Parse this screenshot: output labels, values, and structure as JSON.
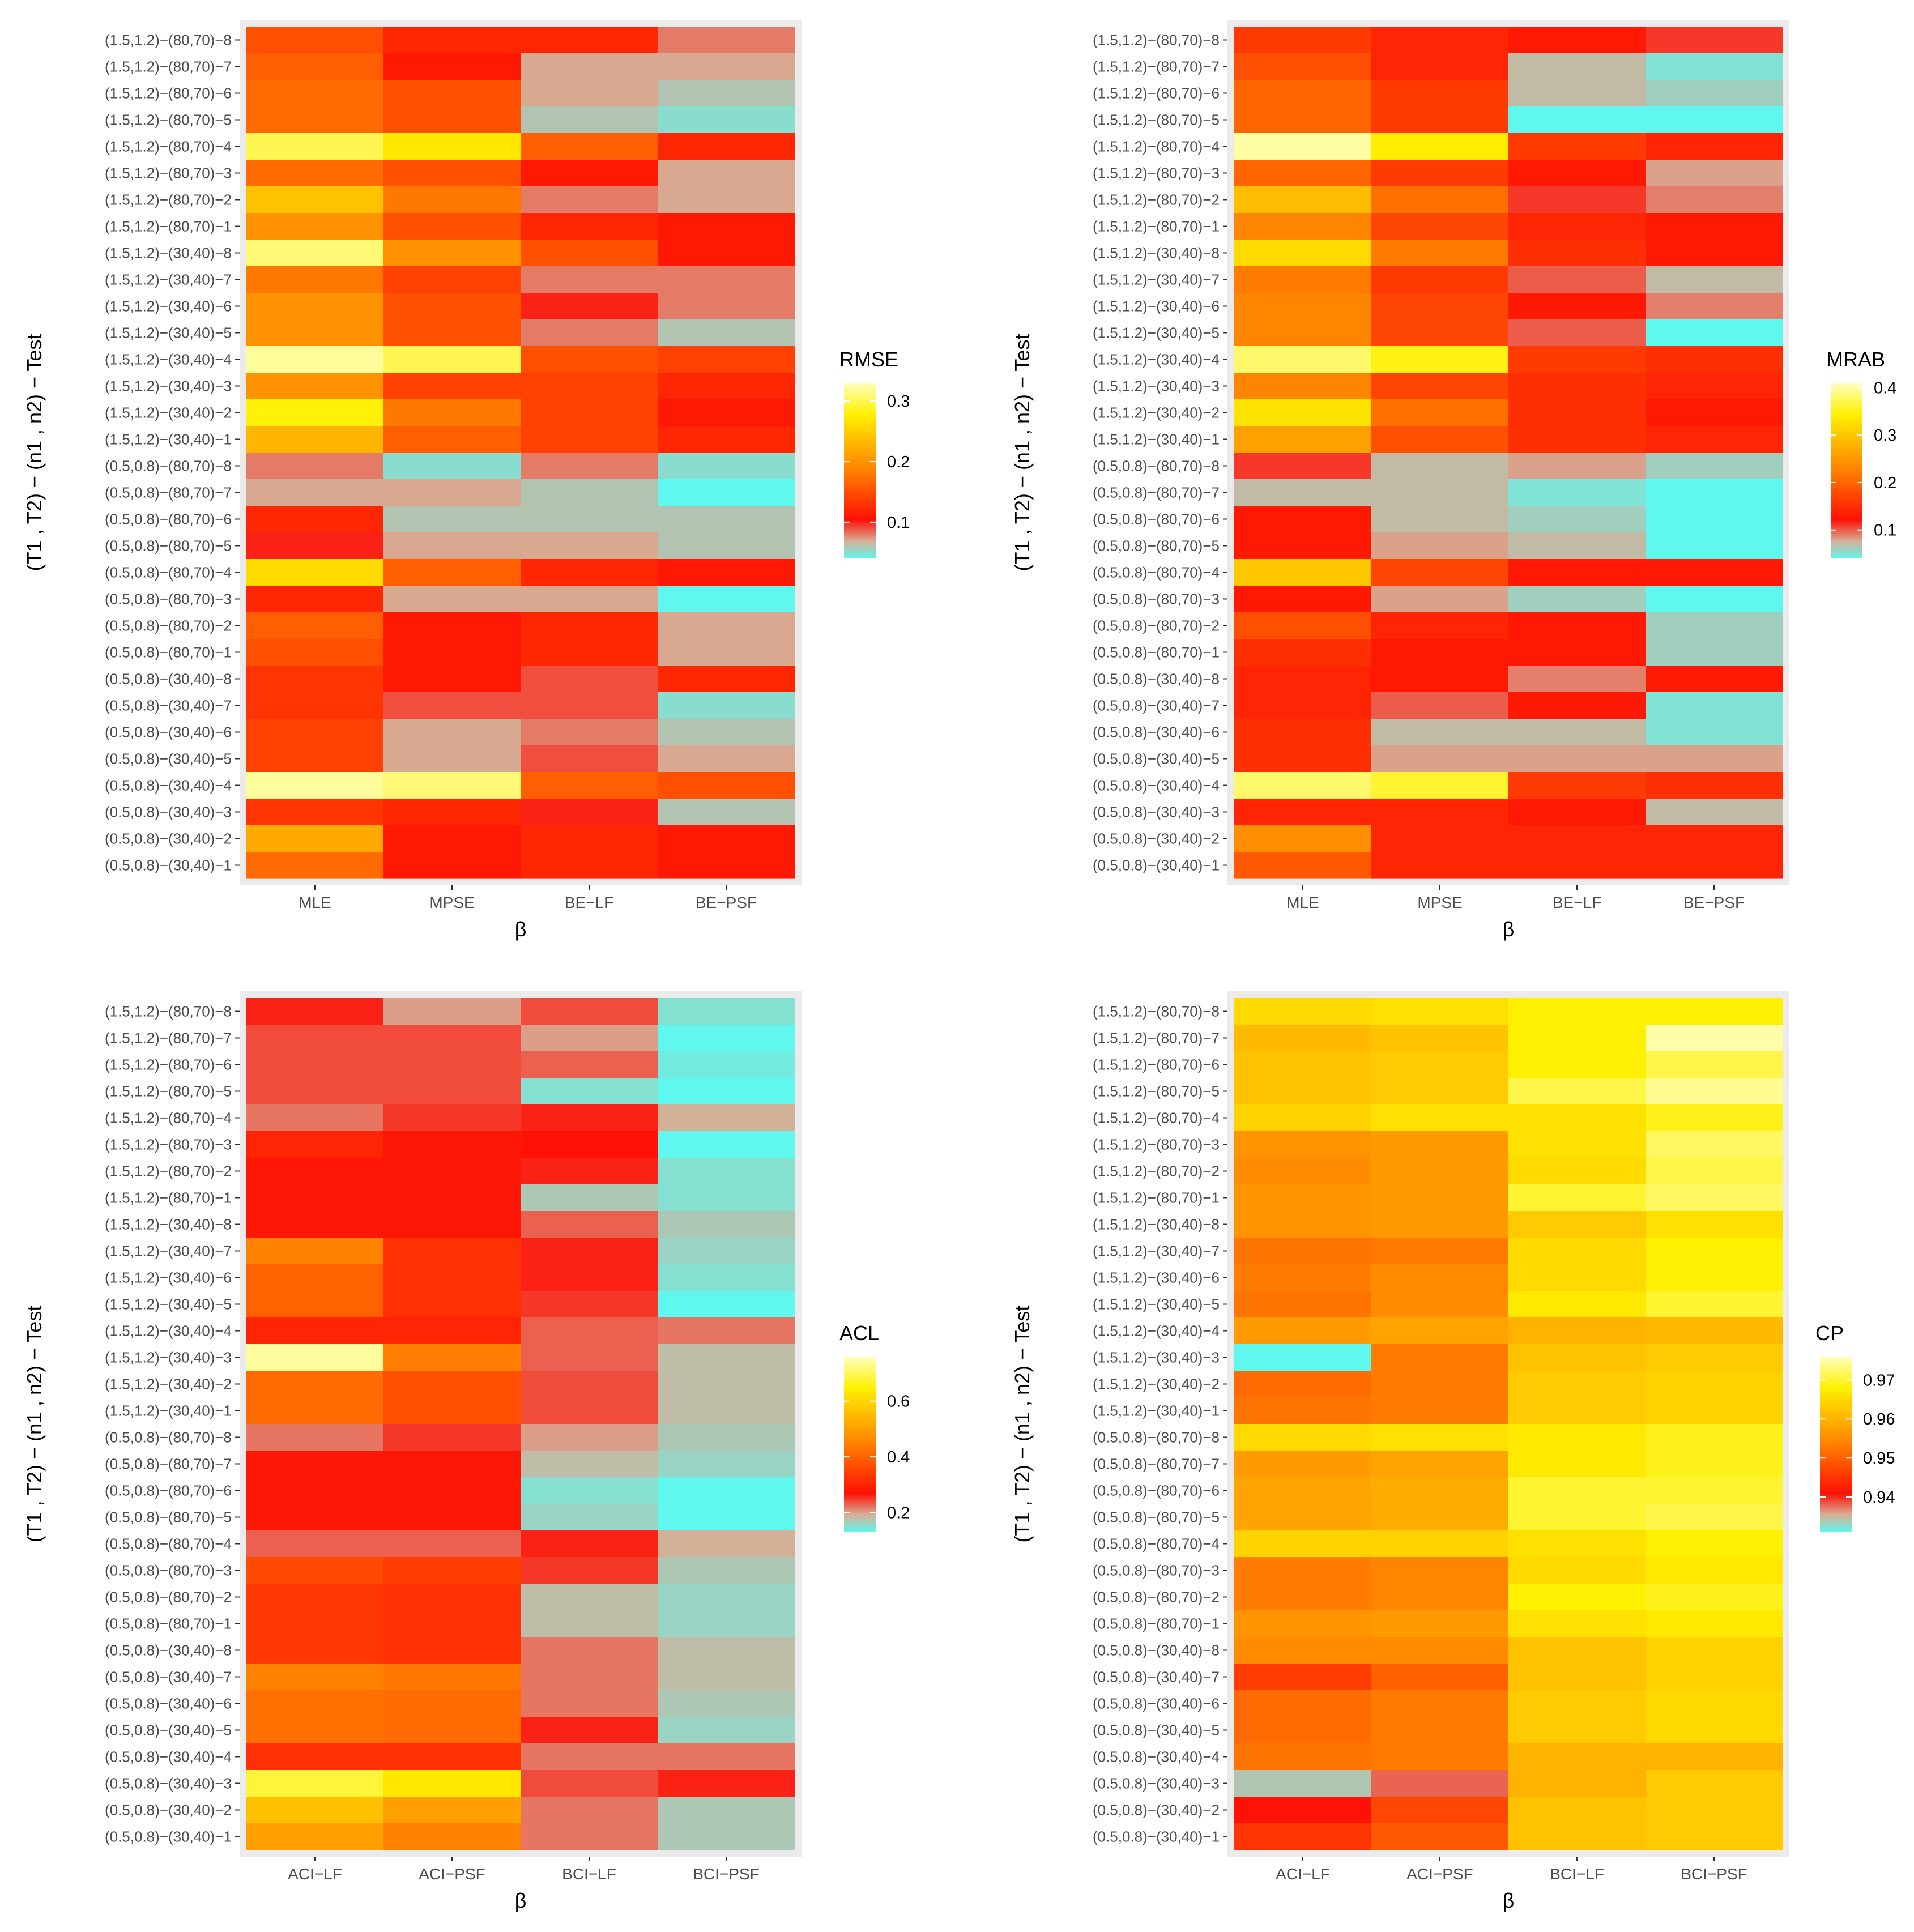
{
  "chart_data": [
    {
      "type": "heatmap",
      "panel": "top-left",
      "xlabel": "β",
      "ylabel": "(T1 , T2) − (n1 , n2) − Test",
      "x_categories": [
        "MLE",
        "MPSE",
        "BE−LF",
        "BE−PSF"
      ],
      "y_categories": [
        "(1.5,1.2)−(80,70)−8",
        "(1.5,1.2)−(80,70)−7",
        "(1.5,1.2)−(80,70)−6",
        "(1.5,1.2)−(80,70)−5",
        "(1.5,1.2)−(80,70)−4",
        "(1.5,1.2)−(80,70)−3",
        "(1.5,1.2)−(80,70)−2",
        "(1.5,1.2)−(80,70)−1",
        "(1.5,1.2)−(30,40)−8",
        "(1.5,1.2)−(30,40)−7",
        "(1.5,1.2)−(30,40)−6",
        "(1.5,1.2)−(30,40)−5",
        "(1.5,1.2)−(30,40)−4",
        "(1.5,1.2)−(30,40)−3",
        "(1.5,1.2)−(30,40)−2",
        "(1.5,1.2)−(30,40)−1",
        "(0.5,0.8)−(80,70)−8",
        "(0.5,0.8)−(80,70)−7",
        "(0.5,0.8)−(80,70)−6",
        "(0.5,0.8)−(80,70)−5",
        "(0.5,0.8)−(80,70)−4",
        "(0.5,0.8)−(80,70)−3",
        "(0.5,0.8)−(80,70)−2",
        "(0.5,0.8)−(80,70)−1",
        "(0.5,0.8)−(30,40)−8",
        "(0.5,0.8)−(30,40)−7",
        "(0.5,0.8)−(30,40)−6",
        "(0.5,0.8)−(30,40)−5",
        "(0.5,0.8)−(30,40)−4",
        "(0.5,0.8)−(30,40)−3",
        "(0.5,0.8)−(30,40)−2",
        "(0.5,0.8)−(30,40)−1"
      ],
      "legend": {
        "title": "RMSE",
        "ticks": [
          0.1,
          0.2,
          0.3
        ],
        "min": 0.04,
        "max": 0.33
      },
      "values": [
        [
          0.15,
          0.12,
          0.12,
          0.08
        ],
        [
          0.16,
          0.11,
          0.07,
          0.07
        ],
        [
          0.17,
          0.15,
          0.07,
          0.06
        ],
        [
          0.17,
          0.15,
          0.06,
          0.05
        ],
        [
          0.3,
          0.27,
          0.16,
          0.12
        ],
        [
          0.17,
          0.15,
          0.11,
          0.07
        ],
        [
          0.24,
          0.18,
          0.08,
          0.07
        ],
        [
          0.2,
          0.15,
          0.12,
          0.11
        ],
        [
          0.31,
          0.2,
          0.15,
          0.11
        ],
        [
          0.18,
          0.14,
          0.08,
          0.08
        ],
        [
          0.2,
          0.15,
          0.1,
          0.08
        ],
        [
          0.2,
          0.15,
          0.08,
          0.06
        ],
        [
          0.32,
          0.3,
          0.15,
          0.14
        ],
        [
          0.2,
          0.14,
          0.14,
          0.12
        ],
        [
          0.28,
          0.18,
          0.14,
          0.11
        ],
        [
          0.23,
          0.16,
          0.14,
          0.12
        ],
        [
          0.08,
          0.05,
          0.08,
          0.05
        ],
        [
          0.07,
          0.07,
          0.06,
          0.03
        ],
        [
          0.12,
          0.06,
          0.06,
          0.06
        ],
        [
          0.1,
          0.07,
          0.07,
          0.06
        ],
        [
          0.26,
          0.16,
          0.12,
          0.11
        ],
        [
          0.12,
          0.07,
          0.07,
          0.04
        ],
        [
          0.16,
          0.11,
          0.12,
          0.07
        ],
        [
          0.15,
          0.11,
          0.12,
          0.07
        ],
        [
          0.13,
          0.11,
          0.09,
          0.12
        ],
        [
          0.13,
          0.09,
          0.09,
          0.05
        ],
        [
          0.14,
          0.07,
          0.08,
          0.06
        ],
        [
          0.14,
          0.07,
          0.09,
          0.07
        ],
        [
          0.32,
          0.31,
          0.16,
          0.15
        ],
        [
          0.13,
          0.12,
          0.1,
          0.06
        ],
        [
          0.22,
          0.11,
          0.12,
          0.11
        ],
        [
          0.17,
          0.11,
          0.12,
          0.11
        ]
      ]
    },
    {
      "type": "heatmap",
      "panel": "top-right",
      "xlabel": "β",
      "ylabel": "(T1 , T2) − (n1 , n2) − Test",
      "x_categories": [
        "MLE",
        "MPSE",
        "BE−LF",
        "BE−PSF"
      ],
      "y_categories": [
        "(1.5,1.2)−(80,70)−8",
        "(1.5,1.2)−(80,70)−7",
        "(1.5,1.2)−(80,70)−6",
        "(1.5,1.2)−(80,70)−5",
        "(1.5,1.2)−(80,70)−4",
        "(1.5,1.2)−(80,70)−3",
        "(1.5,1.2)−(80,70)−2",
        "(1.5,1.2)−(80,70)−1",
        "(1.5,1.2)−(30,40)−8",
        "(1.5,1.2)−(30,40)−7",
        "(1.5,1.2)−(30,40)−6",
        "(1.5,1.2)−(30,40)−5",
        "(1.5,1.2)−(30,40)−4",
        "(1.5,1.2)−(30,40)−3",
        "(1.5,1.2)−(30,40)−2",
        "(1.5,1.2)−(30,40)−1",
        "(0.5,0.8)−(80,70)−8",
        "(0.5,0.8)−(80,70)−7",
        "(0.5,0.8)−(80,70)−6",
        "(0.5,0.8)−(80,70)−5",
        "(0.5,0.8)−(80,70)−4",
        "(0.5,0.8)−(80,70)−3",
        "(0.5,0.8)−(80,70)−2",
        "(0.5,0.8)−(80,70)−1",
        "(0.5,0.8)−(30,40)−8",
        "(0.5,0.8)−(30,40)−7",
        "(0.5,0.8)−(30,40)−6",
        "(0.5,0.8)−(30,40)−5",
        "(0.5,0.8)−(30,40)−4",
        "(0.5,0.8)−(30,40)−3",
        "(0.5,0.8)−(30,40)−2",
        "(0.5,0.8)−(30,40)−1"
      ],
      "legend": {
        "title": "MRAB",
        "ticks": [
          0.1,
          0.2,
          0.3,
          0.4
        ],
        "min": 0.04,
        "max": 0.41
      },
      "values": [
        [
          0.16,
          0.14,
          0.13,
          0.11
        ],
        [
          0.18,
          0.14,
          0.07,
          0.05
        ],
        [
          0.2,
          0.16,
          0.07,
          0.06
        ],
        [
          0.2,
          0.16,
          0.04,
          0.04
        ],
        [
          0.4,
          0.34,
          0.16,
          0.14
        ],
        [
          0.2,
          0.16,
          0.13,
          0.08
        ],
        [
          0.29,
          0.21,
          0.11,
          0.09
        ],
        [
          0.23,
          0.17,
          0.14,
          0.13
        ],
        [
          0.32,
          0.22,
          0.15,
          0.13
        ],
        [
          0.22,
          0.16,
          0.1,
          0.07
        ],
        [
          0.23,
          0.17,
          0.13,
          0.09
        ],
        [
          0.23,
          0.17,
          0.1,
          0.04
        ],
        [
          0.38,
          0.35,
          0.16,
          0.15
        ],
        [
          0.23,
          0.17,
          0.15,
          0.14
        ],
        [
          0.33,
          0.21,
          0.15,
          0.13
        ],
        [
          0.26,
          0.18,
          0.15,
          0.14
        ],
        [
          0.11,
          0.07,
          0.08,
          0.06
        ],
        [
          0.07,
          0.07,
          0.05,
          0.03
        ],
        [
          0.13,
          0.07,
          0.06,
          0.04
        ],
        [
          0.13,
          0.08,
          0.07,
          0.04
        ],
        [
          0.3,
          0.17,
          0.13,
          0.13
        ],
        [
          0.13,
          0.08,
          0.06,
          0.04
        ],
        [
          0.18,
          0.14,
          0.13,
          0.06
        ],
        [
          0.15,
          0.13,
          0.13,
          0.06
        ],
        [
          0.14,
          0.13,
          0.09,
          0.13
        ],
        [
          0.14,
          0.1,
          0.13,
          0.05
        ],
        [
          0.15,
          0.07,
          0.07,
          0.05
        ],
        [
          0.15,
          0.08,
          0.08,
          0.08
        ],
        [
          0.38,
          0.36,
          0.16,
          0.15
        ],
        [
          0.14,
          0.14,
          0.13,
          0.07
        ],
        [
          0.24,
          0.14,
          0.14,
          0.14
        ],
        [
          0.19,
          0.14,
          0.14,
          0.14
        ]
      ]
    },
    {
      "type": "heatmap",
      "panel": "bottom-left",
      "xlabel": "β",
      "ylabel": "(T1 , T2) − (n1 , n2) − Test",
      "x_categories": [
        "ACI−LF",
        "ACI−PSF",
        "BCI−LF",
        "BCI−PSF"
      ],
      "y_categories": [
        "(1.5,1.2)−(80,70)−8",
        "(1.5,1.2)−(80,70)−7",
        "(1.5,1.2)−(80,70)−6",
        "(1.5,1.2)−(80,70)−5",
        "(1.5,1.2)−(80,70)−4",
        "(1.5,1.2)−(80,70)−3",
        "(1.5,1.2)−(80,70)−2",
        "(1.5,1.2)−(80,70)−1",
        "(1.5,1.2)−(30,40)−8",
        "(1.5,1.2)−(30,40)−7",
        "(1.5,1.2)−(30,40)−6",
        "(1.5,1.2)−(30,40)−5",
        "(1.5,1.2)−(30,40)−4",
        "(1.5,1.2)−(30,40)−3",
        "(1.5,1.2)−(30,40)−2",
        "(1.5,1.2)−(30,40)−1",
        "(0.5,0.8)−(80,70)−8",
        "(0.5,0.8)−(80,70)−7",
        "(0.5,0.8)−(80,70)−6",
        "(0.5,0.8)−(80,70)−5",
        "(0.5,0.8)−(80,70)−4",
        "(0.5,0.8)−(80,70)−3",
        "(0.5,0.8)−(80,70)−2",
        "(0.5,0.8)−(80,70)−1",
        "(0.5,0.8)−(30,40)−8",
        "(0.5,0.8)−(30,40)−7",
        "(0.5,0.8)−(30,40)−6",
        "(0.5,0.8)−(30,40)−5",
        "(0.5,0.8)−(30,40)−4",
        "(0.5,0.8)−(30,40)−3",
        "(0.5,0.8)−(30,40)−2",
        "(0.5,0.8)−(30,40)−1"
      ],
      "legend": {
        "title": "ACL",
        "ticks": [
          0.2,
          0.4,
          0.6
        ],
        "min": 0.13,
        "max": 0.76
      },
      "values": [
        [
          0.26,
          0.2,
          0.24,
          0.15
        ],
        [
          0.24,
          0.24,
          0.2,
          0.13
        ],
        [
          0.24,
          0.24,
          0.23,
          0.14
        ],
        [
          0.24,
          0.24,
          0.15,
          0.13
        ],
        [
          0.22,
          0.25,
          0.26,
          0.19
        ],
        [
          0.3,
          0.28,
          0.27,
          0.13
        ],
        [
          0.28,
          0.28,
          0.26,
          0.15
        ],
        [
          0.28,
          0.28,
          0.17,
          0.15
        ],
        [
          0.28,
          0.28,
          0.23,
          0.17
        ],
        [
          0.45,
          0.32,
          0.26,
          0.16
        ],
        [
          0.4,
          0.32,
          0.26,
          0.15
        ],
        [
          0.4,
          0.32,
          0.25,
          0.13
        ],
        [
          0.3,
          0.3,
          0.23,
          0.22
        ],
        [
          0.74,
          0.44,
          0.23,
          0.18
        ],
        [
          0.41,
          0.37,
          0.24,
          0.18
        ],
        [
          0.41,
          0.37,
          0.24,
          0.18
        ],
        [
          0.22,
          0.25,
          0.2,
          0.17
        ],
        [
          0.28,
          0.28,
          0.18,
          0.16
        ],
        [
          0.28,
          0.28,
          0.15,
          0.13
        ],
        [
          0.28,
          0.28,
          0.16,
          0.13
        ],
        [
          0.23,
          0.23,
          0.26,
          0.19
        ],
        [
          0.36,
          0.34,
          0.25,
          0.17
        ],
        [
          0.33,
          0.32,
          0.18,
          0.16
        ],
        [
          0.33,
          0.32,
          0.18,
          0.16
        ],
        [
          0.33,
          0.32,
          0.22,
          0.18
        ],
        [
          0.45,
          0.43,
          0.22,
          0.18
        ],
        [
          0.42,
          0.41,
          0.22,
          0.17
        ],
        [
          0.42,
          0.41,
          0.26,
          0.16
        ],
        [
          0.32,
          0.32,
          0.22,
          0.22
        ],
        [
          0.68,
          0.63,
          0.24,
          0.26
        ],
        [
          0.56,
          0.5,
          0.22,
          0.17
        ],
        [
          0.5,
          0.45,
          0.22,
          0.17
        ]
      ]
    },
    {
      "type": "heatmap",
      "panel": "bottom-right",
      "xlabel": "β",
      "ylabel": "(T1 , T2) − (n1 , n2) − Test",
      "x_categories": [
        "ACI−LF",
        "ACI−PSF",
        "BCI−LF",
        "BCI−PSF"
      ],
      "y_categories": [
        "(1.5,1.2)−(80,70)−8",
        "(1.5,1.2)−(80,70)−7",
        "(1.5,1.2)−(80,70)−6",
        "(1.5,1.2)−(80,70)−5",
        "(1.5,1.2)−(80,70)−4",
        "(1.5,1.2)−(80,70)−3",
        "(1.5,1.2)−(80,70)−2",
        "(1.5,1.2)−(80,70)−1",
        "(1.5,1.2)−(30,40)−8",
        "(1.5,1.2)−(30,40)−7",
        "(1.5,1.2)−(30,40)−6",
        "(1.5,1.2)−(30,40)−5",
        "(1.5,1.2)−(30,40)−4",
        "(1.5,1.2)−(30,40)−3",
        "(1.5,1.2)−(30,40)−2",
        "(1.5,1.2)−(30,40)−1",
        "(0.5,0.8)−(80,70)−8",
        "(0.5,0.8)−(80,70)−7",
        "(0.5,0.8)−(80,70)−6",
        "(0.5,0.8)−(80,70)−5",
        "(0.5,0.8)−(80,70)−4",
        "(0.5,0.8)−(80,70)−3",
        "(0.5,0.8)−(80,70)−2",
        "(0.5,0.8)−(80,70)−1",
        "(0.5,0.8)−(30,40)−8",
        "(0.5,0.8)−(30,40)−7",
        "(0.5,0.8)−(30,40)−6",
        "(0.5,0.8)−(30,40)−5",
        "(0.5,0.8)−(30,40)−4",
        "(0.5,0.8)−(30,40)−3",
        "(0.5,0.8)−(30,40)−2",
        "(0.5,0.8)−(30,40)−1"
      ],
      "legend": {
        "title": "CP",
        "ticks": [
          0.94,
          0.95,
          0.96,
          0.97
        ],
        "min": 0.931,
        "max": 0.976
      },
      "values": [
        [
          0.965,
          0.966,
          0.968,
          0.968
        ],
        [
          0.961,
          0.962,
          0.968,
          0.975
        ],
        [
          0.962,
          0.963,
          0.968,
          0.971
        ],
        [
          0.962,
          0.963,
          0.971,
          0.974
        ],
        [
          0.964,
          0.966,
          0.966,
          0.969
        ],
        [
          0.956,
          0.957,
          0.966,
          0.972
        ],
        [
          0.955,
          0.957,
          0.965,
          0.971
        ],
        [
          0.956,
          0.957,
          0.97,
          0.972
        ],
        [
          0.956,
          0.957,
          0.963,
          0.966
        ],
        [
          0.952,
          0.953,
          0.965,
          0.968
        ],
        [
          0.953,
          0.955,
          0.965,
          0.968
        ],
        [
          0.952,
          0.955,
          0.967,
          0.97
        ],
        [
          0.957,
          0.958,
          0.96,
          0.961
        ],
        [
          0.931,
          0.953,
          0.962,
          0.963
        ],
        [
          0.951,
          0.953,
          0.963,
          0.964
        ],
        [
          0.952,
          0.953,
          0.963,
          0.964
        ],
        [
          0.965,
          0.966,
          0.967,
          0.969
        ],
        [
          0.957,
          0.958,
          0.967,
          0.969
        ],
        [
          0.958,
          0.959,
          0.97,
          0.97
        ],
        [
          0.958,
          0.959,
          0.97,
          0.971
        ],
        [
          0.964,
          0.964,
          0.966,
          0.968
        ],
        [
          0.953,
          0.954,
          0.965,
          0.967
        ],
        [
          0.953,
          0.954,
          0.968,
          0.969
        ],
        [
          0.956,
          0.957,
          0.966,
          0.967
        ],
        [
          0.955,
          0.955,
          0.962,
          0.964
        ],
        [
          0.946,
          0.95,
          0.962,
          0.964
        ],
        [
          0.951,
          0.953,
          0.963,
          0.965
        ],
        [
          0.951,
          0.953,
          0.963,
          0.965
        ],
        [
          0.952,
          0.953,
          0.96,
          0.96
        ],
        [
          0.934,
          0.938,
          0.96,
          0.963
        ],
        [
          0.941,
          0.947,
          0.962,
          0.963
        ],
        [
          0.945,
          0.949,
          0.962,
          0.963
        ]
      ]
    }
  ]
}
